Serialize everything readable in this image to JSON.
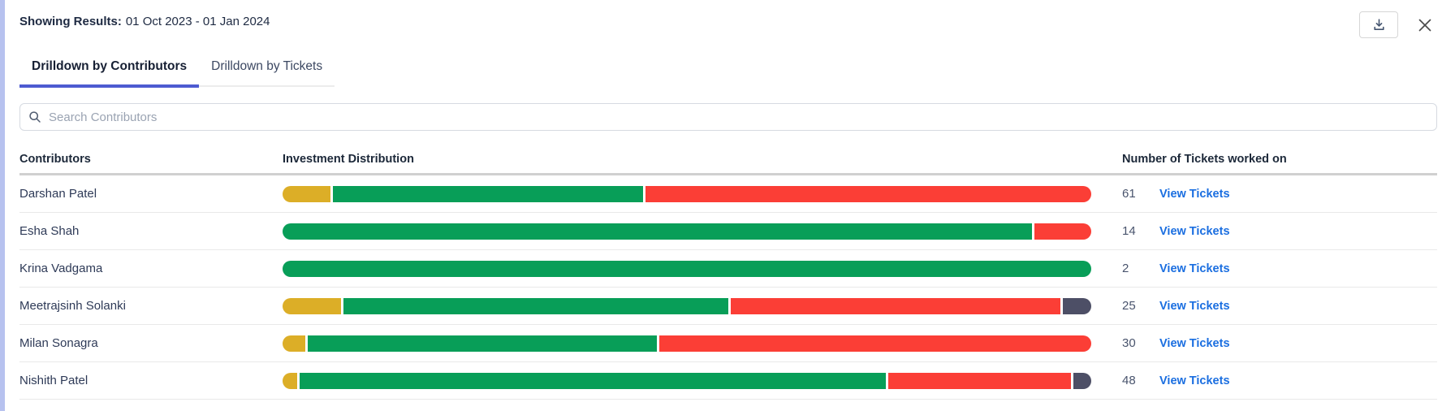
{
  "header": {
    "label": "Showing Results:",
    "date_range": "01 Oct 2023 - 01 Jan 2024"
  },
  "tabs": [
    {
      "label": "Drilldown by Contributors",
      "active": true
    },
    {
      "label": "Drilldown by Tickets",
      "active": false
    }
  ],
  "search": {
    "placeholder": "Search Contributors"
  },
  "table": {
    "columns": [
      "Contributors",
      "Investment Distribution",
      "Number of Tickets worked on"
    ],
    "link_label": "View Tickets",
    "rows": [
      {
        "name": "Darshan Patel",
        "tickets": "61",
        "segments": [
          {
            "key": "amber",
            "pct": 6.0
          },
          {
            "key": "green",
            "pct": 38.5
          },
          {
            "key": "red",
            "pct": 55.5
          }
        ]
      },
      {
        "name": "Esha Shah",
        "tickets": "14",
        "segments": [
          {
            "key": "green",
            "pct": 93.0
          },
          {
            "key": "red",
            "pct": 7.0
          }
        ]
      },
      {
        "name": "Krina Vadgama",
        "tickets": "2",
        "segments": [
          {
            "key": "green",
            "pct": 100.0
          }
        ]
      },
      {
        "name": "Meetrajsinh Solanki",
        "tickets": "25",
        "segments": [
          {
            "key": "amber",
            "pct": 7.3
          },
          {
            "key": "green",
            "pct": 48.0
          },
          {
            "key": "red",
            "pct": 41.2
          },
          {
            "key": "slate",
            "pct": 3.5
          }
        ]
      },
      {
        "name": "Milan Sonagra",
        "tickets": "30",
        "segments": [
          {
            "key": "amber",
            "pct": 2.8
          },
          {
            "key": "green",
            "pct": 43.5
          },
          {
            "key": "red",
            "pct": 53.7
          }
        ]
      },
      {
        "name": "Nishith Patel",
        "tickets": "48",
        "segments": [
          {
            "key": "amber",
            "pct": 1.8
          },
          {
            "key": "green",
            "pct": 73.2
          },
          {
            "key": "red",
            "pct": 22.8
          },
          {
            "key": "slate",
            "pct": 2.2
          }
        ]
      }
    ]
  },
  "colors": {
    "amber": "#dcae27",
    "green": "#089e58",
    "red": "#fb3e36",
    "slate": "#4d4f66",
    "tab_accent": "#4d5bd1",
    "link": "#1a6ee0"
  },
  "icons": {
    "download": "download-icon",
    "close": "close-icon",
    "search": "search-icon"
  }
}
